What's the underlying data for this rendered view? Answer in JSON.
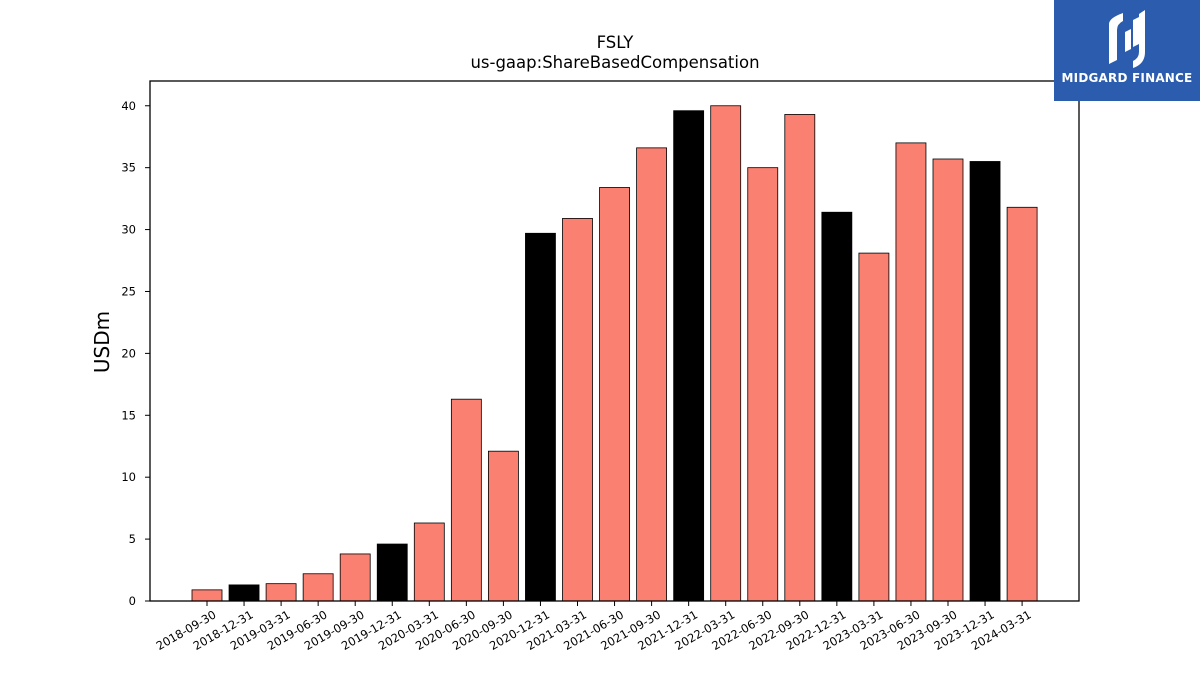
{
  "logo": {
    "text": "MIDGARD FINANCE",
    "background": "#2b5cad",
    "icon": "midgard-logo-icon"
  },
  "chart_data": {
    "type": "bar",
    "title": "FSLY",
    "subtitle": "us-gaap:ShareBasedCompensation",
    "ylabel": "USDm",
    "xlabel": "",
    "ylim": [
      0,
      42
    ],
    "yticks": [
      0,
      5,
      10,
      15,
      20,
      25,
      30,
      35,
      40
    ],
    "grid": false,
    "colors": {
      "quarter": "#fa8072",
      "year_end": "#000000",
      "edge": "#000000"
    },
    "categories": [
      "2018-09-30",
      "2018-12-31",
      "2019-03-31",
      "2019-06-30",
      "2019-09-30",
      "2019-12-31",
      "2020-03-31",
      "2020-06-30",
      "2020-09-30",
      "2020-12-31",
      "2021-03-31",
      "2021-06-30",
      "2021-09-30",
      "2021-12-31",
      "2022-03-31",
      "2022-06-30",
      "2022-09-30",
      "2022-12-31",
      "2023-03-31",
      "2023-06-30",
      "2023-09-30",
      "2023-12-31",
      "2024-03-31"
    ],
    "values": [
      0.9,
      1.3,
      1.4,
      2.2,
      3.8,
      4.6,
      6.3,
      16.3,
      12.1,
      29.7,
      30.9,
      33.4,
      36.6,
      39.6,
      40.0,
      35.0,
      39.3,
      31.4,
      28.1,
      37.0,
      35.7,
      35.5,
      31.8
    ]
  }
}
